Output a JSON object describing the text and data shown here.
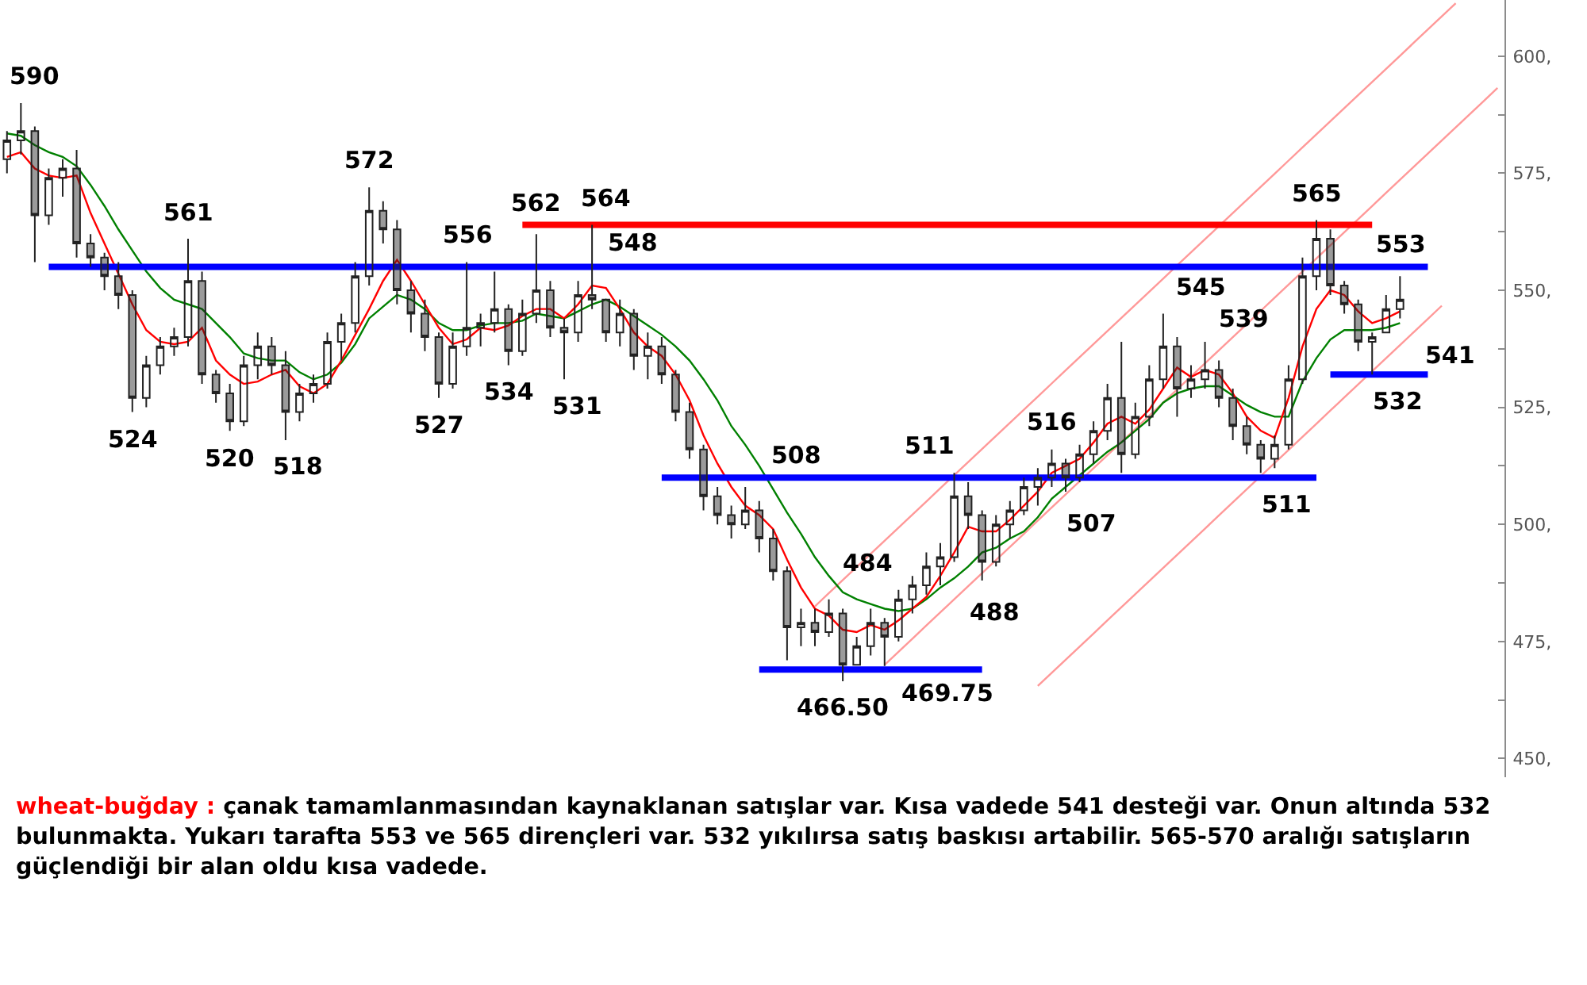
{
  "chart_data": {
    "type": "candlestick",
    "title": "wheat-buğday :",
    "annotations": [
      "çanak tamamlanmasından kaynaklanan satışlar var. Kısa vadede 541 desteği var. Onun altında 532 bulunmakta. Yukarı tarafta 553 ve 565 dirençleri var. 532 yıkılırsa satış baskısı artabilir. 565-570 aralığı satışların güçlendiği bir alan oldu kısa vadede."
    ],
    "categories": [
      null,
      null,
      null,
      null,
      null,
      null,
      null,
      null,
      null,
      null,
      null,
      null,
      null,
      null,
      null,
      null,
      null,
      null,
      null,
      null,
      null,
      null,
      null,
      null,
      null,
      null,
      null,
      null,
      null,
      null,
      null,
      null,
      null,
      null,
      null,
      null,
      null,
      null,
      null,
      null,
      null,
      null,
      null,
      null,
      null,
      null,
      null,
      null,
      null,
      null,
      null,
      null,
      null,
      null,
      null,
      null,
      null,
      null,
      null,
      null,
      null,
      null,
      null,
      null,
      null,
      null,
      null,
      null,
      null,
      null,
      null,
      null,
      null,
      null,
      null,
      null,
      null,
      null,
      null,
      null,
      null,
      null,
      null,
      null,
      null,
      null,
      null,
      null,
      null,
      null,
      null,
      null,
      null,
      null,
      null,
      null,
      null,
      null,
      null,
      null,
      null,
      null,
      null,
      null,
      null,
      null,
      null,
      null
    ],
    "ylim": [
      446,
      612
    ],
    "yticks": [
      {
        "value": 450,
        "label": "450,"
      },
      {
        "value": 462.5,
        "label": null
      },
      {
        "value": 475,
        "label": "475,"
      },
      {
        "value": 487.5,
        "label": null
      },
      {
        "value": 500,
        "label": "500,"
      },
      {
        "value": 512.5,
        "label": null
      },
      {
        "value": 525,
        "label": "525,"
      },
      {
        "value": 537.5,
        "label": null
      },
      {
        "value": 550,
        "label": "550,"
      },
      {
        "value": 562.5,
        "label": null
      },
      {
        "value": 575,
        "label": "575,"
      },
      {
        "value": 587.5,
        "label": null
      },
      {
        "value": 600,
        "label": "600,"
      }
    ],
    "tick_labels": "y",
    "series": [
      {
        "type": "line",
        "color": "#ff9999",
        "values": [
          null,
          null,
          null,
          null,
          null,
          null,
          null,
          null,
          null,
          null,
          null,
          null,
          null,
          null,
          null,
          null,
          null,
          null,
          null,
          null,
          null,
          null,
          null,
          null,
          null,
          null,
          null,
          null,
          null,
          null,
          null,
          null,
          null,
          null,
          null,
          null,
          null,
          null,
          null,
          null,
          null,
          null,
          null,
          null,
          null,
          null,
          null,
          null,
          null,
          null,
          null,
          null,
          null,
          null,
          null,
          null,
          null,
          null,
          482.5,
          485.3,
          488.1,
          490.9,
          493.7,
          496.5,
          499.3,
          502.1,
          504.9,
          507.7,
          510.5,
          513.3,
          516.1,
          518.9,
          521.7,
          524.5,
          527.3,
          530.1,
          532.9,
          535.7,
          538.5,
          541.3,
          544.1,
          546.9,
          549.7,
          552.5,
          555.3,
          558.1,
          560.9,
          563.7,
          566.5,
          569.3,
          572.1,
          574.9,
          577.7,
          580.5,
          583.3,
          586.1,
          588.9,
          591.7,
          594.5,
          597.3,
          600.1,
          602.9,
          605.7,
          608.5,
          611.3,
          null,
          null,
          null
        ]
      },
      {
        "type": "line",
        "color": "#ff9999",
        "values": [
          null,
          null,
          null,
          null,
          null,
          null,
          null,
          null,
          null,
          null,
          null,
          null,
          null,
          null,
          null,
          null,
          null,
          null,
          null,
          null,
          null,
          null,
          null,
          null,
          null,
          null,
          null,
          null,
          null,
          null,
          null,
          null,
          null,
          null,
          null,
          null,
          null,
          null,
          null,
          null,
          null,
          null,
          null,
          null,
          null,
          null,
          null,
          null,
          null,
          null,
          null,
          null,
          null,
          null,
          null,
          null,
          null,
          null,
          null,
          null,
          null,
          null,
          null,
          470,
          472.8,
          475.6,
          478.4,
          481.2,
          484,
          486.8,
          489.6,
          492.4,
          495.2,
          498,
          500.8,
          503.6,
          506.4,
          509.2,
          512,
          514.8,
          517.6,
          520.4,
          523.2,
          526,
          528.8,
          531.6,
          534.4,
          537.2,
          540,
          542.8,
          545.6,
          548.4,
          551.2,
          554,
          556.8,
          559.6,
          562.4,
          565.2,
          568,
          570.8,
          573.6,
          576.4,
          579.2,
          582,
          584.8,
          587.6,
          590.4,
          593.2
        ]
      },
      {
        "type": "line",
        "color": "#ff9999",
        "values": [
          null,
          null,
          null,
          null,
          null,
          null,
          null,
          null,
          null,
          null,
          null,
          null,
          null,
          null,
          null,
          null,
          null,
          null,
          null,
          null,
          null,
          null,
          null,
          null,
          null,
          null,
          null,
          null,
          null,
          null,
          null,
          null,
          null,
          null,
          null,
          null,
          null,
          null,
          null,
          null,
          null,
          null,
          null,
          null,
          null,
          null,
          null,
          null,
          null,
          null,
          null,
          null,
          null,
          null,
          null,
          null,
          null,
          null,
          null,
          null,
          null,
          null,
          null,
          null,
          null,
          null,
          null,
          null,
          null,
          null,
          null,
          null,
          null,
          null,
          465.5,
          468.3,
          471.1,
          473.9,
          476.7,
          479.5,
          482.3,
          485.1,
          487.9,
          490.7,
          493.5,
          496.3,
          499.1,
          501.9,
          504.7,
          507.5,
          510.3,
          513.1,
          515.9,
          518.7,
          521.5,
          524.3,
          527.1,
          529.9,
          532.7,
          535.5,
          538.3,
          541.1,
          543.9,
          546.7,
          null,
          null,
          null,
          null
        ]
      },
      {
        "type": "line",
        "color": "#008000",
        "values": [
          583.5,
          583,
          581,
          579.5,
          578.5,
          576.5,
          572.5,
          568,
          563,
          558.5,
          554,
          550.5,
          548,
          547,
          546,
          543,
          540,
          536.5,
          535.5,
          535,
          535,
          532.5,
          531,
          532,
          534.5,
          538.5,
          544,
          546.5,
          549,
          548,
          546,
          543,
          541.5,
          541.5,
          542.5,
          543,
          543,
          543.5,
          545,
          544.5,
          544,
          545.5,
          547,
          548,
          546.5,
          544.5,
          542.5,
          540.5,
          538,
          535,
          531,
          526.5,
          521,
          517,
          512.5,
          507.5,
          502.5,
          498,
          493,
          489,
          485.5,
          484,
          483,
          482,
          481.5,
          482,
          484,
          486.5,
          488.5,
          491,
          494,
          495,
          497,
          498.5,
          501.5,
          505.5,
          508,
          510.5,
          513,
          515.5,
          517.5,
          520,
          522.5,
          526,
          528,
          529,
          529.5,
          529.5,
          527.5,
          525.5,
          524,
          523,
          523,
          530.5,
          535.5,
          539.5,
          541.5,
          541.5,
          541.5,
          542,
          543,
          null,
          null,
          null,
          null,
          null,
          null,
          null
        ]
      },
      {
        "type": "line",
        "color": "#ff0000",
        "values": [
          578.5,
          579.5,
          576,
          574.5,
          574,
          574.5,
          566.5,
          560,
          553.5,
          547,
          541.5,
          539,
          538.5,
          539,
          542,
          535,
          532,
          530,
          530.5,
          532,
          533,
          529.5,
          528,
          530,
          535,
          540.5,
          546,
          552,
          556.5,
          552,
          547,
          542,
          538.5,
          539.5,
          542,
          541.5,
          542.5,
          544.5,
          546,
          546,
          544,
          547,
          551,
          550.5,
          546,
          541,
          538,
          536,
          532,
          526.5,
          519,
          513,
          508,
          504,
          502,
          499,
          492.5,
          486.5,
          482,
          480.5,
          477.5,
          477,
          478.5,
          477.5,
          479.5,
          482,
          484.5,
          489,
          494,
          499.5,
          498.5,
          498.5,
          501,
          504,
          507,
          511,
          512.5,
          514,
          517.5,
          521.5,
          523,
          521.5,
          524.5,
          529,
          533.5,
          531.5,
          533,
          532,
          528,
          523,
          520,
          518.5,
          527,
          538,
          546,
          550,
          549,
          545.5,
          543,
          544,
          545.5,
          null,
          null,
          null,
          null,
          null,
          null,
          null
        ]
      },
      {
        "type": "line",
        "color": "#0000ff",
        "values": [
          null,
          null,
          null,
          555,
          555,
          555,
          555,
          555,
          555,
          555,
          555,
          555,
          555,
          555,
          555,
          555,
          555,
          555,
          555,
          555,
          555,
          555,
          555,
          555,
          555,
          555,
          555,
          555,
          555,
          555,
          555,
          555,
          555,
          555,
          555,
          555,
          555,
          555,
          555,
          555,
          555,
          555,
          555,
          555,
          555,
          555,
          555,
          555,
          555,
          555,
          555,
          555,
          555,
          555,
          555,
          555,
          555,
          555,
          555,
          555,
          555,
          555,
          555,
          555,
          555,
          555,
          555,
          555,
          555,
          555,
          555,
          555,
          555,
          555,
          555,
          555,
          555,
          555,
          555,
          555,
          555,
          555,
          555,
          555,
          555,
          555,
          555,
          555,
          555,
          555,
          555,
          555,
          555,
          555,
          555,
          555,
          555,
          555,
          555,
          555,
          555,
          555,
          555,
          null,
          null,
          null,
          null,
          null
        ]
      },
      {
        "type": "line",
        "color": "#ff0000",
        "values": [
          null,
          null,
          null,
          null,
          null,
          null,
          null,
          null,
          null,
          null,
          null,
          null,
          null,
          null,
          null,
          null,
          null,
          null,
          null,
          null,
          null,
          null,
          null,
          null,
          null,
          null,
          null,
          null,
          null,
          null,
          null,
          null,
          null,
          null,
          null,
          null,
          null,
          564,
          564,
          564,
          564,
          564,
          564,
          564,
          564,
          564,
          564,
          564,
          564,
          564,
          564,
          564,
          564,
          564,
          564,
          564,
          564,
          564,
          564,
          564,
          564,
          564,
          564,
          564,
          564,
          564,
          564,
          564,
          564,
          564,
          564,
          564,
          564,
          564,
          564,
          564,
          564,
          564,
          564,
          564,
          564,
          564,
          564,
          564,
          564,
          564,
          564,
          564,
          564,
          564,
          564,
          564,
          564,
          564,
          564,
          564,
          564,
          564,
          564,
          null,
          null,
          null,
          null,
          null,
          null,
          null,
          null,
          null
        ]
      },
      {
        "type": "line",
        "color": "#0000ff",
        "values": [
          null,
          null,
          null,
          null,
          null,
          null,
          null,
          null,
          null,
          null,
          null,
          null,
          null,
          null,
          null,
          null,
          null,
          null,
          null,
          null,
          null,
          null,
          null,
          null,
          null,
          null,
          null,
          null,
          null,
          null,
          null,
          null,
          null,
          null,
          null,
          null,
          null,
          null,
          null,
          null,
          null,
          null,
          null,
          null,
          null,
          null,
          null,
          510,
          510,
          510,
          510,
          510,
          510,
          510,
          510,
          510,
          510,
          510,
          510,
          510,
          510,
          510,
          510,
          510,
          510,
          510,
          510,
          510,
          510,
          510,
          510,
          510,
          510,
          510,
          510,
          510,
          510,
          510,
          510,
          510,
          510,
          510,
          510,
          510,
          510,
          510,
          510,
          510,
          510,
          510,
          510,
          510,
          510,
          510,
          510,
          null,
          null,
          null,
          null,
          null,
          null,
          null,
          null,
          null,
          null,
          null,
          null,
          null
        ]
      },
      {
        "type": "line",
        "color": "#0000ff",
        "values": [
          null,
          null,
          null,
          null,
          null,
          null,
          null,
          null,
          null,
          null,
          null,
          null,
          null,
          null,
          null,
          null,
          null,
          null,
          null,
          null,
          null,
          null,
          null,
          null,
          null,
          null,
          null,
          null,
          null,
          null,
          null,
          null,
          null,
          null,
          null,
          null,
          null,
          null,
          null,
          null,
          null,
          null,
          null,
          null,
          null,
          null,
          null,
          null,
          null,
          null,
          null,
          null,
          null,
          null,
          null,
          null,
          null,
          null,
          null,
          null,
          null,
          null,
          null,
          null,
          null,
          null,
          null,
          null,
          null,
          null,
          null,
          null,
          null,
          null,
          null,
          null,
          null,
          null,
          null,
          null,
          null,
          null,
          null,
          null,
          null,
          null,
          null,
          null,
          null,
          null,
          null,
          null,
          null,
          null,
          null,
          532,
          532,
          532,
          532,
          532,
          532,
          532,
          532,
          null,
          null,
          null,
          null,
          null
        ]
      },
      {
        "type": "line",
        "color": "#0000ff",
        "values": [
          null,
          null,
          null,
          null,
          null,
          null,
          null,
          null,
          null,
          null,
          null,
          null,
          null,
          null,
          null,
          null,
          null,
          null,
          null,
          null,
          null,
          null,
          null,
          null,
          null,
          null,
          null,
          null,
          null,
          null,
          null,
          null,
          null,
          null,
          null,
          null,
          null,
          null,
          null,
          null,
          null,
          null,
          null,
          null,
          null,
          null,
          null,
          null,
          null,
          null,
          null,
          null,
          null,
          null,
          469,
          469,
          469,
          469,
          469,
          469,
          469,
          469,
          469,
          469,
          469,
          469,
          469,
          469,
          469,
          469,
          469,
          null,
          null,
          null,
          null,
          null,
          null,
          null,
          null,
          null,
          null,
          null,
          null,
          null,
          null,
          null,
          null,
          null,
          null,
          null,
          null,
          null,
          null,
          null,
          null,
          null,
          null,
          null,
          null,
          null,
          null,
          null,
          null,
          null,
          null,
          null,
          null,
          null
        ]
      },
      {
        "color": "#222222",
        "ohlc": [
          [
            578,
            584,
            575,
            582
          ],
          [
            582,
            590,
            579,
            584
          ],
          [
            584,
            585,
            556,
            566
          ],
          [
            566,
            576,
            564,
            574
          ],
          [
            574,
            578,
            570,
            576
          ],
          [
            576,
            580,
            557,
            560
          ],
          [
            560,
            562,
            555,
            557
          ],
          [
            557,
            558,
            550,
            553
          ],
          [
            553,
            556,
            546,
            549
          ],
          [
            549,
            550,
            524,
            527
          ],
          [
            527,
            536,
            525,
            534
          ],
          [
            534,
            540,
            532,
            538
          ],
          [
            538,
            542,
            536,
            540
          ],
          [
            540,
            561,
            538,
            552
          ],
          [
            552,
            554,
            530,
            532
          ],
          [
            532,
            533,
            526,
            528
          ],
          [
            528,
            530,
            520,
            522
          ],
          [
            522,
            536,
            521,
            534
          ],
          [
            534,
            541,
            531,
            538
          ],
          [
            538,
            540,
            532,
            534
          ],
          [
            534,
            537,
            518,
            524
          ],
          [
            524,
            530,
            522,
            528
          ],
          [
            528,
            532,
            526,
            530
          ],
          [
            530,
            541,
            529,
            539
          ],
          [
            539,
            545,
            535,
            543
          ],
          [
            543,
            556,
            541,
            553
          ],
          [
            553,
            572,
            551,
            567
          ],
          [
            567,
            569,
            560,
            563
          ],
          [
            563,
            565,
            547,
            550
          ],
          [
            550,
            552,
            541,
            545
          ],
          [
            545,
            548,
            537,
            540
          ],
          [
            540,
            541,
            527,
            530
          ],
          [
            530,
            541,
            529,
            538
          ],
          [
            538,
            556,
            536,
            542
          ],
          [
            542,
            545,
            538,
            543
          ],
          [
            543,
            554,
            541,
            546
          ],
          [
            546,
            547,
            534,
            537
          ],
          [
            537,
            548,
            536,
            545
          ],
          [
            545,
            562,
            543,
            550
          ],
          [
            550,
            552,
            540,
            542
          ],
          [
            542,
            544,
            531,
            541
          ],
          [
            541,
            552,
            539,
            549
          ],
          [
            549,
            564,
            546,
            548
          ],
          [
            548,
            548,
            539,
            541
          ],
          [
            541,
            548,
            538,
            545
          ],
          [
            545,
            546,
            533,
            536
          ],
          [
            536,
            541,
            531,
            538
          ],
          [
            538,
            540,
            530,
            532
          ],
          [
            532,
            533,
            522,
            524
          ],
          [
            524,
            526,
            514,
            516
          ],
          [
            516,
            517,
            503,
            506
          ],
          [
            506,
            508,
            500,
            502
          ],
          [
            502,
            504,
            497,
            500
          ],
          [
            500,
            508,
            499,
            503
          ],
          [
            503,
            505,
            494,
            497
          ],
          [
            497,
            499,
            488,
            490
          ],
          [
            490,
            491,
            471,
            478
          ],
          [
            478,
            482,
            474,
            479
          ],
          [
            479,
            482,
            474,
            477
          ],
          [
            477,
            484,
            476,
            481
          ],
          [
            481,
            482,
            466.5,
            470
          ],
          [
            470,
            476,
            470,
            474
          ],
          [
            474,
            482,
            472,
            479
          ],
          [
            479,
            480,
            469.75,
            476
          ],
          [
            476,
            486,
            475,
            484
          ],
          [
            484,
            489,
            481,
            487
          ],
          [
            487,
            494,
            485,
            491
          ],
          [
            491,
            496,
            487,
            493
          ],
          [
            493,
            511,
            492,
            506
          ],
          [
            506,
            509,
            499,
            502
          ],
          [
            502,
            503,
            488,
            492
          ],
          [
            492,
            502,
            491,
            500
          ],
          [
            500,
            505,
            497,
            503
          ],
          [
            503,
            510,
            502,
            508
          ],
          [
            508,
            512,
            504,
            510
          ],
          [
            510,
            516,
            508,
            513
          ],
          [
            513,
            514,
            507,
            510
          ],
          [
            510,
            517,
            509,
            515
          ],
          [
            515,
            522,
            513,
            520
          ],
          [
            520,
            530,
            518,
            527
          ],
          [
            527,
            539,
            511,
            515
          ],
          [
            515,
            526,
            514,
            523
          ],
          [
            523,
            534,
            521,
            531
          ],
          [
            531,
            545,
            529,
            538
          ],
          [
            538,
            540,
            523,
            529
          ],
          [
            529,
            534,
            527,
            531
          ],
          [
            531,
            539,
            529,
            533
          ],
          [
            533,
            535,
            525,
            527
          ],
          [
            527,
            529,
            518,
            521
          ],
          [
            521,
            523,
            515,
            517
          ],
          [
            517,
            518,
            511,
            514
          ],
          [
            514,
            519,
            512,
            517
          ],
          [
            517,
            534,
            516,
            531
          ],
          [
            531,
            557,
            530,
            553
          ],
          [
            553,
            565,
            550,
            561
          ],
          [
            561,
            563,
            549,
            551
          ],
          [
            551,
            552,
            545,
            547
          ],
          [
            547,
            548,
            537,
            539
          ],
          [
            539,
            541,
            532,
            540
          ],
          [
            541,
            549,
            541,
            546
          ],
          [
            546,
            553,
            544,
            548
          ],
          null,
          null,
          null,
          null,
          null,
          null,
          null
        ],
        "value_labels": [
          null,
          "590",
          null,
          null,
          null,
          null,
          null,
          null,
          null,
          "524",
          null,
          null,
          null,
          "561",
          null,
          null,
          "520",
          null,
          null,
          null,
          "518",
          null,
          null,
          null,
          null,
          null,
          "572",
          null,
          null,
          null,
          null,
          "527",
          null,
          "556",
          null,
          null,
          "534",
          null,
          "562",
          null,
          "531",
          null,
          "564",
          null,
          "548",
          null,
          null,
          null,
          null,
          null,
          null,
          null,
          null,
          "508",
          null,
          null,
          null,
          null,
          null,
          "484",
          "466.50",
          null,
          null,
          "469.75",
          null,
          null,
          null,
          null,
          "511",
          null,
          "488",
          null,
          null,
          null,
          null,
          "516",
          "507",
          null,
          null,
          null,
          null,
          null,
          null,
          "545",
          null,
          null,
          "539",
          null,
          null,
          null,
          "511",
          null,
          null,
          null,
          "565",
          null,
          null,
          null,
          "532",
          "541",
          "553",
          null,
          null,
          null,
          null,
          null,
          null,
          null
        ]
      }
    ]
  }
}
